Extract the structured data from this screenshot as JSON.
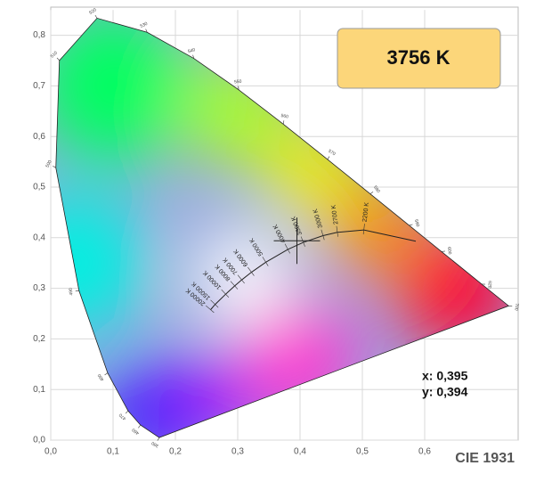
{
  "chart_data": {
    "type": "chromaticity",
    "title": "CIE 1931",
    "xlim": [
      0,
      0.75
    ],
    "ylim": [
      0,
      0.85
    ],
    "xticks": [
      {
        "value": 0,
        "label": "0,0"
      },
      {
        "value": 0.1,
        "label": "0,1"
      },
      {
        "value": 0.2,
        "label": "0,2"
      },
      {
        "value": 0.3,
        "label": "0,3"
      },
      {
        "value": 0.4,
        "label": "0,4"
      },
      {
        "value": 0.5,
        "label": "0,5"
      },
      {
        "value": 0.6,
        "label": "0,6"
      }
    ],
    "yticks": [
      {
        "value": 0,
        "label": "0,0"
      },
      {
        "value": 0.1,
        "label": "0,1"
      },
      {
        "value": 0.2,
        "label": "0,2"
      },
      {
        "value": 0.3,
        "label": "0,3"
      },
      {
        "value": 0.4,
        "label": "0,4"
      },
      {
        "value": 0.5,
        "label": "0,5"
      },
      {
        "value": 0.6,
        "label": "0,6"
      },
      {
        "value": 0.7,
        "label": "0,7"
      },
      {
        "value": 0.8,
        "label": "0,8"
      }
    ],
    "grid": true,
    "locus": {
      "wavelengths": [
        380,
        460,
        470,
        480,
        490,
        500,
        510,
        520,
        530,
        540,
        550,
        560,
        570,
        580,
        590,
        600,
        620,
        700
      ],
      "x": [
        0.1741,
        0.144,
        0.1241,
        0.0913,
        0.0454,
        0.0082,
        0.0139,
        0.0743,
        0.1547,
        0.2296,
        0.3016,
        0.3731,
        0.4441,
        0.5125,
        0.5752,
        0.627,
        0.6915,
        0.7347
      ],
      "y": [
        0.005,
        0.0297,
        0.0578,
        0.1327,
        0.295,
        0.5384,
        0.7502,
        0.8338,
        0.8059,
        0.7543,
        0.6923,
        0.6245,
        0.5547,
        0.4866,
        0.4242,
        0.3725,
        0.3083,
        0.2653
      ]
    },
    "planckian": {
      "labels": [
        null,
        "2200 K",
        "2700 K",
        "3000 K",
        "3500 K",
        "4000 K",
        "5000 K",
        "6000 K",
        "7000 K",
        "8000 K",
        "10000 K",
        "15000 K",
        "20000 K"
      ],
      "x": [
        0.5857,
        0.5024,
        0.4599,
        0.4369,
        0.4053,
        0.3805,
        0.3451,
        0.3221,
        0.3064,
        0.2952,
        0.2807,
        0.2637,
        0.2565
      ],
      "y": [
        0.3931,
        0.4153,
        0.4106,
        0.4041,
        0.3907,
        0.3768,
        0.3516,
        0.3318,
        0.3166,
        0.3048,
        0.2884,
        0.2681,
        0.2577
      ]
    },
    "point": {
      "x": 0.395,
      "y": 0.394,
      "x_label": "x: 0,395",
      "y_label": "y: 0,394",
      "cct_label": "3756 K"
    }
  }
}
